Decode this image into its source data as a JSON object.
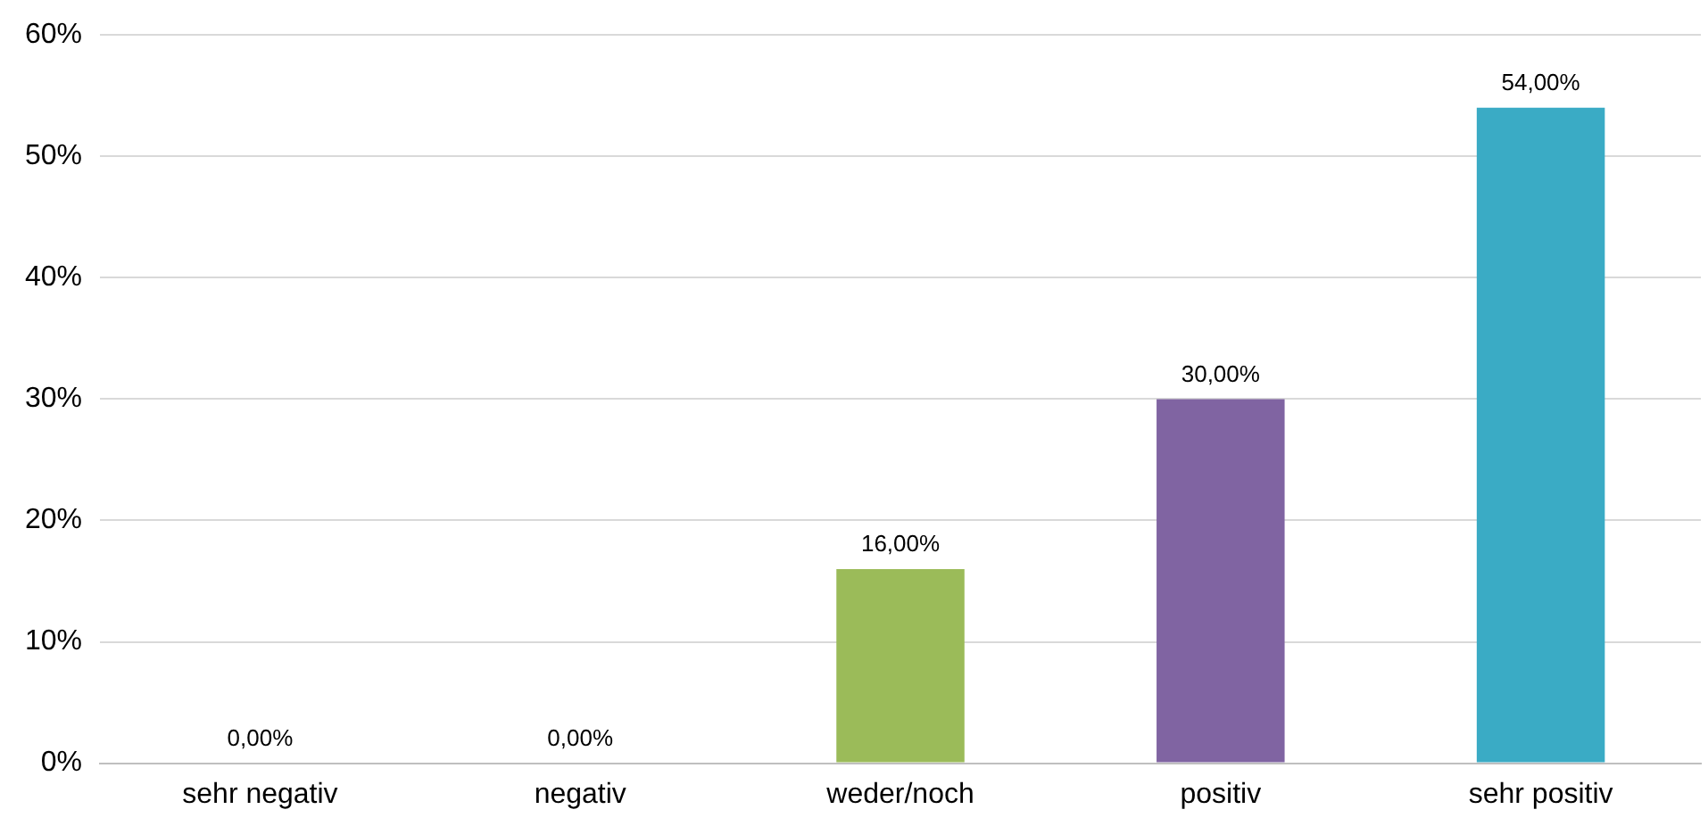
{
  "chart_data": {
    "type": "bar",
    "categories": [
      "sehr negativ",
      "negativ",
      "weder/noch",
      "positiv",
      "sehr positiv"
    ],
    "values": [
      0,
      0,
      16,
      30,
      54
    ],
    "colors": [
      "#4f81bd",
      "#c0504d",
      "#9bbb59",
      "#8064a2",
      "#3aabc5"
    ],
    "value_labels": [
      "0,00%",
      "0,00%",
      "16,00%",
      "30,00%",
      "54,00%"
    ],
    "ylim": [
      0,
      60
    ],
    "yticks": [
      {
        "value": 0,
        "label": "0%"
      },
      {
        "value": 10,
        "label": "10%"
      },
      {
        "value": 20,
        "label": "20%"
      },
      {
        "value": 30,
        "label": "30%"
      },
      {
        "value": 40,
        "label": "40%"
      },
      {
        "value": 50,
        "label": "50%"
      },
      {
        "value": 60,
        "label": "60%"
      }
    ],
    "grid": "y",
    "legend": false
  }
}
